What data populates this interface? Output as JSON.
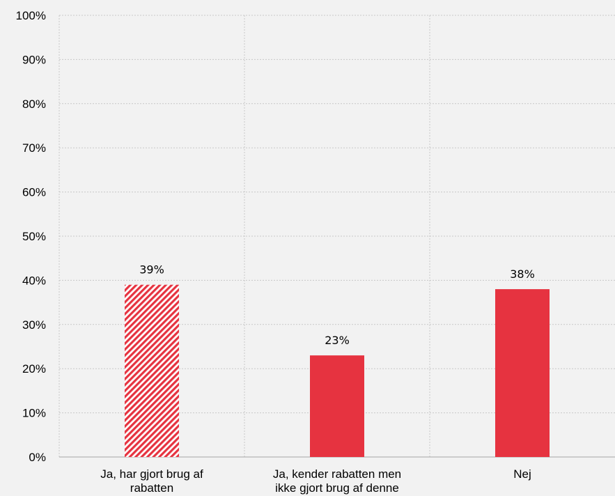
{
  "colors": {
    "bar": "#e63340",
    "background": "#f2f2f2",
    "hatch_bar_index": 0
  },
  "chart_data": {
    "type": "bar",
    "categories": [
      [
        "Ja, har gjort brug af",
        "rabatten"
      ],
      [
        "Ja, kender rabatten men",
        "ikke gjort brug af denne"
      ],
      [
        "Nej"
      ]
    ],
    "values": [
      39,
      23,
      38
    ],
    "data_labels": [
      "39%",
      "23%",
      "38%"
    ],
    "y_ticks": [
      "0%",
      "10%",
      "20%",
      "30%",
      "40%",
      "50%",
      "60%",
      "70%",
      "80%",
      "90%",
      "100%"
    ],
    "ylim": [
      0,
      100
    ],
    "grid": true,
    "legend": "none"
  }
}
